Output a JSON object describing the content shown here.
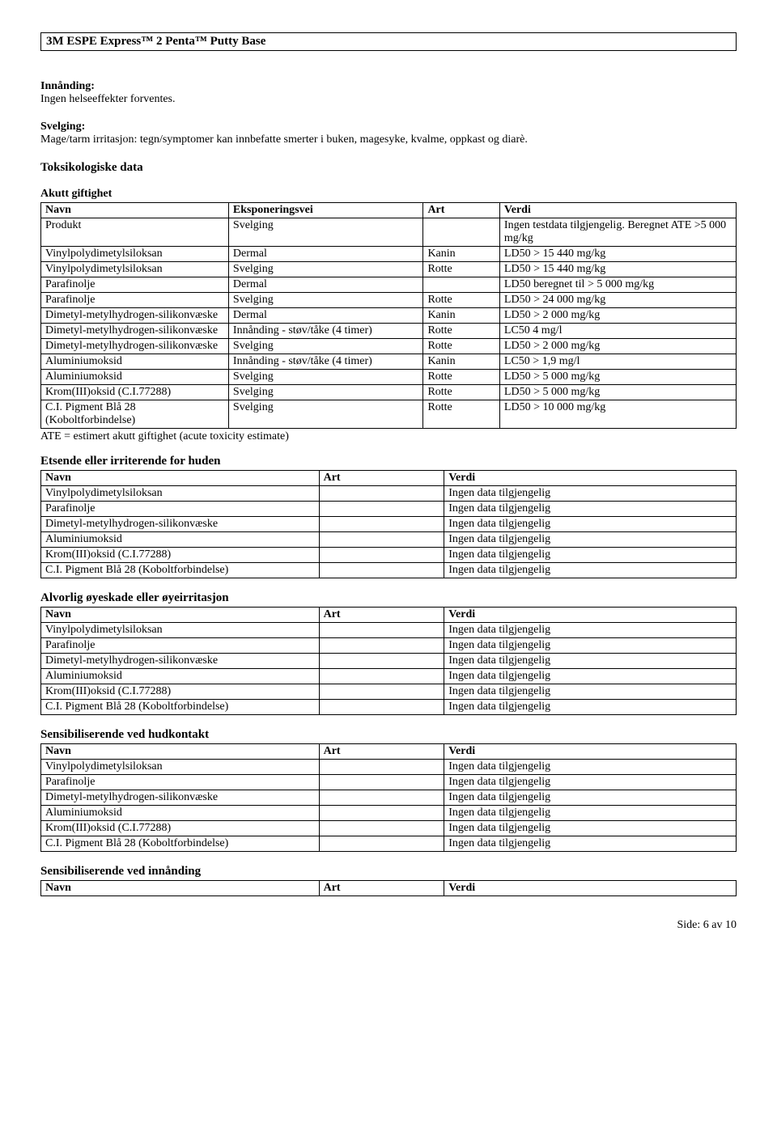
{
  "header": {
    "title": "3M ESPE Express™ 2 Penta™ Putty Base"
  },
  "intro": {
    "inhale_label": "Innånding:",
    "inhale_text": "Ingen helseeffekter forventes.",
    "swallow_label": "Svelging:",
    "swallow_text": "Mage/tarm irritasjon: tegn/symptomer kan innbefatte smerter i buken, magesyke, kvalme, oppkast og diarè."
  },
  "tox": {
    "title": "Toksikologiske data",
    "subtitle": "Akutt giftighet",
    "headers": [
      "Navn",
      "Eksponeringsvei",
      "Art",
      "Verdi"
    ],
    "rows": [
      [
        "Produkt",
        "Svelging",
        "",
        "Ingen testdata tilgjengelig. Beregnet ATE >5 000 mg/kg"
      ],
      [
        "Vinylpolydimetylsiloksan",
        "Dermal",
        "Kanin",
        "LD50 > 15 440 mg/kg"
      ],
      [
        "Vinylpolydimetylsiloksan",
        "Svelging",
        "Rotte",
        "LD50 > 15 440 mg/kg"
      ],
      [
        "Parafinolje",
        "Dermal",
        "",
        "LD50 beregnet til > 5 000 mg/kg"
      ],
      [
        "Parafinolje",
        "Svelging",
        "Rotte",
        "LD50 > 24 000 mg/kg"
      ],
      [
        "Dimetyl-metylhydrogen-silikonvæske",
        "Dermal",
        "Kanin",
        "LD50 > 2 000 mg/kg"
      ],
      [
        "Dimetyl-metylhydrogen-silikonvæske",
        "Innånding - støv/tåke (4 timer)",
        "Rotte",
        "LC50  4 mg/l"
      ],
      [
        "Dimetyl-metylhydrogen-silikonvæske",
        "Svelging",
        "Rotte",
        "LD50 > 2 000 mg/kg"
      ],
      [
        "Aluminiumoksid",
        "Innånding - støv/tåke (4 timer)",
        "Kanin",
        "LC50 > 1,9 mg/l"
      ],
      [
        "Aluminiumoksid",
        "Svelging",
        "Rotte",
        "LD50 > 5 000 mg/kg"
      ],
      [
        "Krom(III)oksid (C.I.77288)",
        "Svelging",
        "Rotte",
        "LD50 > 5 000 mg/kg"
      ],
      [
        "C.I. Pigment Blå 28 (Koboltforbindelse)",
        "Svelging",
        "Rotte",
        "LD50 > 10 000 mg/kg"
      ]
    ],
    "ate_note": "ATE = estimert akutt giftighet (acute toxicity estimate)"
  },
  "sections": [
    {
      "title": "Etsende eller irriterende for huden",
      "headers": [
        "Navn",
        "Art",
        "Verdi"
      ],
      "rows": [
        [
          "Vinylpolydimetylsiloksan",
          "",
          "Ingen data tilgjengelig"
        ],
        [
          "Parafinolje",
          "",
          "Ingen data tilgjengelig"
        ],
        [
          "Dimetyl-metylhydrogen-silikonvæske",
          "",
          "Ingen data tilgjengelig"
        ],
        [
          "Aluminiumoksid",
          "",
          "Ingen data tilgjengelig"
        ],
        [
          "Krom(III)oksid (C.I.77288)",
          "",
          "Ingen data tilgjengelig"
        ],
        [
          "C.I. Pigment Blå 28 (Koboltforbindelse)",
          "",
          "Ingen data tilgjengelig"
        ]
      ]
    },
    {
      "title": "Alvorlig øyeskade eller øyeirritasjon",
      "headers": [
        "Navn",
        "Art",
        "Verdi"
      ],
      "rows": [
        [
          "Vinylpolydimetylsiloksan",
          "",
          "Ingen data tilgjengelig"
        ],
        [
          "Parafinolje",
          "",
          "Ingen data tilgjengelig"
        ],
        [
          "Dimetyl-metylhydrogen-silikonvæske",
          "",
          "Ingen data tilgjengelig"
        ],
        [
          "Aluminiumoksid",
          "",
          "Ingen data tilgjengelig"
        ],
        [
          "Krom(III)oksid (C.I.77288)",
          "",
          "Ingen data tilgjengelig"
        ],
        [
          "C.I. Pigment Blå 28 (Koboltforbindelse)",
          "",
          "Ingen data tilgjengelig"
        ]
      ]
    },
    {
      "title": "Sensibiliserende ved hudkontakt",
      "headers": [
        "Navn",
        "Art",
        "Verdi"
      ],
      "rows": [
        [
          "Vinylpolydimetylsiloksan",
          "",
          "Ingen data tilgjengelig"
        ],
        [
          "Parafinolje",
          "",
          "Ingen data tilgjengelig"
        ],
        [
          "Dimetyl-metylhydrogen-silikonvæske",
          "",
          "Ingen data tilgjengelig"
        ],
        [
          "Aluminiumoksid",
          "",
          "Ingen data tilgjengelig"
        ],
        [
          "Krom(III)oksid (C.I.77288)",
          "",
          "Ingen data tilgjengelig"
        ],
        [
          "C.I. Pigment Blå 28 (Koboltforbindelse)",
          "",
          "Ingen data tilgjengelig"
        ]
      ]
    },
    {
      "title": "Sensibiliserende ved innånding",
      "headers": [
        "Navn",
        "Art",
        "Verdi"
      ],
      "rows": []
    }
  ],
  "footer": {
    "text": "Side: 6 av  10"
  }
}
